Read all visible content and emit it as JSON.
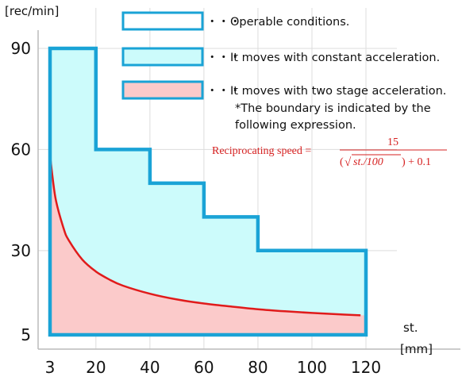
{
  "chart_data": {
    "type": "area",
    "ylabel": "[rec/min]",
    "xlabel_line1": "st.",
    "xlabel_line2": "[mm]",
    "x_ticks": [
      3,
      20,
      40,
      60,
      80,
      100,
      120
    ],
    "y_ticks": [
      5,
      30,
      60,
      90
    ],
    "xlim": [
      3,
      120
    ],
    "ylim": [
      5,
      90
    ],
    "grid": true,
    "legend_placement": "top-right",
    "colors": {
      "operable_border": "#1aa3d6",
      "constant_fill": "#ccfbfb",
      "two_stage_fill": "#fbcaca",
      "curve": "#e01b1b",
      "formula": "#d62020",
      "grid": "#dddddd"
    },
    "series": [
      {
        "name": "Operable conditions.",
        "shape": "step-area",
        "points": [
          [
            3,
            90
          ],
          [
            20,
            90
          ],
          [
            20,
            60
          ],
          [
            40,
            60
          ],
          [
            40,
            50
          ],
          [
            60,
            50
          ],
          [
            60,
            40
          ],
          [
            80,
            40
          ],
          [
            80,
            30
          ],
          [
            120,
            30
          ],
          [
            120,
            5
          ],
          [
            3,
            5
          ]
        ]
      },
      {
        "name": "It moves with two stage acceleration.",
        "shape": "curve-area",
        "x": [
          3,
          5,
          8,
          10,
          15,
          20,
          25,
          30,
          40,
          50,
          60,
          70,
          80,
          90,
          100,
          110,
          118
        ],
        "y": [
          58.4,
          45.7,
          36.7,
          33.0,
          27.3,
          23.8,
          21.4,
          19.6,
          17.2,
          15.5,
          14.3,
          13.4,
          12.6,
          12.0,
          11.5,
          11.1,
          10.8
        ]
      }
    ],
    "legend": [
      {
        "label": "Operable conditions.",
        "style": "outline"
      },
      {
        "label": "It moves with constant acceleration.",
        "style": "cyan"
      },
      {
        "label": "It moves with two stage acceleration.",
        "style": "pink"
      }
    ],
    "legend_prefix": "・・・",
    "annotation": {
      "note_line1": "*The boundary is indicated by the",
      "note_line2": "following expression.",
      "formula_left": "Reciprocating speed =",
      "formula_numerator": "15",
      "formula_open": "(",
      "formula_sqrt_symbol": "√",
      "formula_sqrt_arg": "st./100",
      "formula_close": ") + 0.1"
    }
  }
}
